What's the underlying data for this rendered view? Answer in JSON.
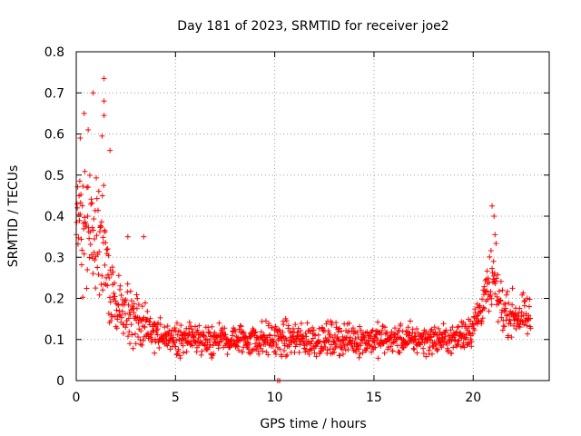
{
  "chart_data": {
    "type": "scatter",
    "title": "Day 181 of 2023, SRMTID for receiver joe2",
    "xlabel": "GPS time / hours",
    "ylabel": "SRMTID / TECUs",
    "xlim": [
      0,
      23.83
    ],
    "ylim": [
      0,
      0.8
    ],
    "xticks": [
      0,
      5,
      10,
      15,
      20
    ],
    "yticks": [
      0,
      0.1,
      0.2,
      0.3,
      0.4,
      0.5,
      0.6,
      0.7,
      0.8
    ],
    "xtick_labels": [
      "0",
      "5",
      "10",
      "15",
      "20"
    ],
    "ytick_labels": [
      "0",
      "0.1",
      "0.2",
      "0.3",
      "0.4",
      "0.5",
      "0.6",
      "0.7",
      "0.8"
    ],
    "grid": true,
    "marker": "+",
    "color": "#ff0000",
    "x_range_of_data": [
      0,
      22.9
    ],
    "envelope": [
      {
        "x": 0.0,
        "center": 0.4,
        "spread": 0.12
      },
      {
        "x": 0.5,
        "center": 0.38,
        "spread": 0.16
      },
      {
        "x": 1.0,
        "center": 0.35,
        "spread": 0.18
      },
      {
        "x": 1.5,
        "center": 0.3,
        "spread": 0.16
      },
      {
        "x": 2.0,
        "center": 0.18,
        "spread": 0.08
      },
      {
        "x": 2.5,
        "center": 0.15,
        "spread": 0.07
      },
      {
        "x": 3.0,
        "center": 0.15,
        "spread": 0.08
      },
      {
        "x": 3.5,
        "center": 0.14,
        "spread": 0.06
      },
      {
        "x": 4.0,
        "center": 0.11,
        "spread": 0.04
      },
      {
        "x": 5.0,
        "center": 0.1,
        "spread": 0.035
      },
      {
        "x": 8.0,
        "center": 0.1,
        "spread": 0.04
      },
      {
        "x": 10.0,
        "center": 0.1,
        "spread": 0.045
      },
      {
        "x": 15.0,
        "center": 0.1,
        "spread": 0.04
      },
      {
        "x": 19.0,
        "center": 0.1,
        "spread": 0.035
      },
      {
        "x": 20.0,
        "center": 0.13,
        "spread": 0.05
      },
      {
        "x": 20.5,
        "center": 0.19,
        "spread": 0.05
      },
      {
        "x": 21.0,
        "center": 0.24,
        "spread": 0.1
      },
      {
        "x": 21.5,
        "center": 0.17,
        "spread": 0.05
      },
      {
        "x": 22.0,
        "center": 0.16,
        "spread": 0.05
      },
      {
        "x": 22.9,
        "center": 0.15,
        "spread": 0.05
      }
    ],
    "notable_points": [
      {
        "x": 1.4,
        "y": 0.735
      },
      {
        "x": 0.85,
        "y": 0.7
      },
      {
        "x": 1.4,
        "y": 0.68
      },
      {
        "x": 0.4,
        "y": 0.65
      },
      {
        "x": 1.4,
        "y": 0.645
      },
      {
        "x": 0.6,
        "y": 0.61
      },
      {
        "x": 0.2,
        "y": 0.59
      },
      {
        "x": 1.3,
        "y": 0.595
      },
      {
        "x": 1.7,
        "y": 0.56
      },
      {
        "x": 2.6,
        "y": 0.35
      },
      {
        "x": 3.4,
        "y": 0.35
      },
      {
        "x": 20.95,
        "y": 0.425
      },
      {
        "x": 21.05,
        "y": 0.4
      },
      {
        "x": 21.1,
        "y": 0.355
      },
      {
        "x": 10.15,
        "y": 0.0
      },
      {
        "x": 10.25,
        "y": 0.0
      }
    ]
  }
}
